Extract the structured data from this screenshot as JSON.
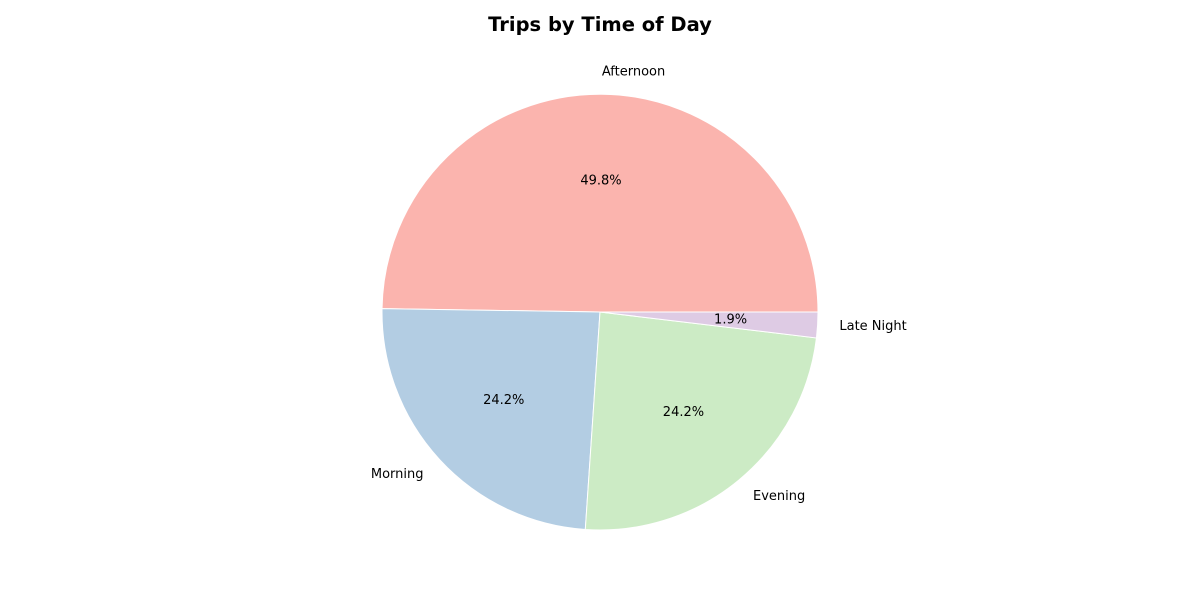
{
  "chart_data": {
    "type": "pie",
    "title": "Trips by Time of Day",
    "categories": [
      "Afternoon",
      "Morning",
      "Evening",
      "Late Night"
    ],
    "values": [
      49.8,
      24.2,
      24.2,
      1.9
    ],
    "percent_labels": [
      "49.8%",
      "24.2%",
      "24.2%",
      "1.9%"
    ],
    "colors": [
      "#fbb4ae",
      "#b3cde3",
      "#ccebc5",
      "#decbe4"
    ],
    "start_angle_deg": 0,
    "direction": "counterclockwise"
  }
}
